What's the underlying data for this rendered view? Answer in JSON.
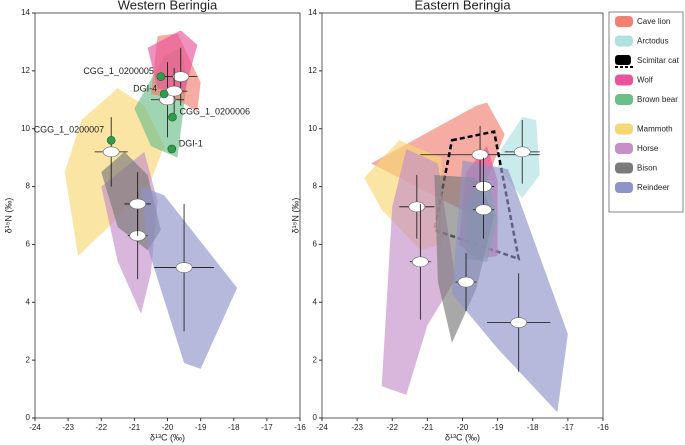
{
  "chart_data": [
    {
      "type": "scatter",
      "title": "Western Beringia",
      "xlabel": "δ¹³C (‰)",
      "ylabel": "δ¹⁵N (‰)",
      "xlim": [
        -24,
        -16
      ],
      "ylim": [
        0,
        14
      ],
      "xticks": [
        -24,
        -23,
        -22,
        -21,
        -20,
        -19,
        -18,
        -17,
        -16
      ],
      "yticks": [
        0,
        2,
        4,
        6,
        8,
        10,
        12,
        14
      ],
      "series": [
        {
          "name": "Mammoth",
          "color": "#f7d774",
          "x": -21.7,
          "y": 9.2,
          "xerr": 0.5,
          "yerr": 1.2,
          "hull": [
            [
              -23.1,
              8.5
            ],
            [
              -22.7,
              5.6
            ],
            [
              -21.6,
              6.8
            ],
            [
              -20.5,
              8.2
            ],
            [
              -20.1,
              9.4
            ],
            [
              -20.7,
              10.8
            ],
            [
              -21.5,
              11.4
            ],
            [
              -22.6,
              10.3
            ]
          ]
        },
        {
          "name": "Horse",
          "color": "#c58fc8",
          "x": -20.9,
          "y": 6.3,
          "xerr": 0.3,
          "yerr": 1.5,
          "hull": [
            [
              -22.0,
              8.0
            ],
            [
              -20.7,
              9.2
            ],
            [
              -20.3,
              7.5
            ],
            [
              -20.5,
              5.0
            ],
            [
              -20.8,
              3.6
            ],
            [
              -21.5,
              5.4
            ]
          ]
        },
        {
          "name": "Bison",
          "color": "#7a7a7a",
          "x": -20.9,
          "y": 7.4,
          "xerr": 0.4,
          "yerr": 1.1,
          "hull": [
            [
              -22.0,
              8.5
            ],
            [
              -21.3,
              9.2
            ],
            [
              -20.6,
              8.4
            ],
            [
              -20.2,
              6.5
            ],
            [
              -20.6,
              5.8
            ],
            [
              -21.5,
              6.6
            ]
          ]
        },
        {
          "name": "Reindeer",
          "color": "#8f94c8",
          "x": -19.5,
          "y": 5.2,
          "xerr": 0.9,
          "yerr": 2.2,
          "hull": [
            [
              -20.8,
              8.0
            ],
            [
              -20.1,
              7.7
            ],
            [
              -17.9,
              4.5
            ],
            [
              -19.0,
              1.7
            ],
            [
              -19.5,
              1.9
            ],
            [
              -20.6,
              5.9
            ]
          ]
        },
        {
          "name": "Brown bear",
          "color": "#6dbf8a",
          "x": -20.0,
          "y": 11.0,
          "xerr": 0.5,
          "yerr": 1.3,
          "hull": [
            [
              -21.0,
              10.7
            ],
            [
              -20.1,
              12.5
            ],
            [
              -19.6,
              12.8
            ],
            [
              -19.4,
              11.7
            ],
            [
              -19.7,
              9.0
            ],
            [
              -20.5,
              9.4
            ]
          ]
        },
        {
          "name": "Cave lion",
          "color": "#f08070",
          "x": -19.6,
          "y": 11.8,
          "xerr": 0.5,
          "yerr": 1.0,
          "hull": [
            [
              -20.3,
              13.2
            ],
            [
              -19.7,
              13.3
            ],
            [
              -19.0,
              11.6
            ],
            [
              -19.1,
              10.6
            ],
            [
              -19.7,
              11.0
            ],
            [
              -20.5,
              11.2
            ]
          ]
        },
        {
          "name": "Wolf",
          "color": "#e8559a",
          "x": -19.8,
          "y": 11.3,
          "xerr": 0.4,
          "yerr": 0.8,
          "hull": [
            [
              -20.6,
              12.8
            ],
            [
              -19.6,
              13.4
            ],
            [
              -19.1,
              12.9
            ],
            [
              -19.5,
              11.2
            ],
            [
              -20.3,
              11.4
            ]
          ]
        }
      ],
      "annotations": [
        {
          "label": "CGG_1_0200005",
          "x": -20.2,
          "y": 11.8
        },
        {
          "label": "DGI-4",
          "x": -20.1,
          "y": 11.2
        },
        {
          "label": "CGG_1_0200006",
          "x": -19.85,
          "y": 10.4
        },
        {
          "label": "DGI-1",
          "x": -19.87,
          "y": 9.3
        },
        {
          "label": "CGG_1_0200007",
          "x": -21.7,
          "y": 9.6
        }
      ],
      "annotation_color": "#2e9e4a"
    },
    {
      "type": "scatter",
      "title": "Eastern Beringia",
      "xlabel": "δ¹³C (‰)",
      "ylabel": "δ¹⁵N (‰)",
      "xlim": [
        -24,
        -16
      ],
      "ylim": [
        0,
        14
      ],
      "xticks": [
        -24,
        -23,
        -22,
        -21,
        -20,
        -19,
        -18,
        -17,
        -16
      ],
      "yticks": [
        0,
        2,
        4,
        6,
        8,
        10,
        12,
        14
      ],
      "series": [
        {
          "name": "Cave lion",
          "color": "#f08070",
          "x": -19.5,
          "y": 9.1,
          "xerr": 1.7,
          "yerr": 1.0,
          "hull": [
            [
              -22.6,
              8.8
            ],
            [
              -19.6,
              10.8
            ],
            [
              -19.3,
              10.9
            ],
            [
              -18.8,
              9.8
            ],
            [
              -19.7,
              7.0
            ],
            [
              -21.0,
              7.8
            ]
          ]
        },
        {
          "name": "Arctodus",
          "color": "#aee0e0",
          "x": -18.3,
          "y": 9.2,
          "xerr": 0.5,
          "yerr": 1.1,
          "hull": [
            [
              -18.9,
              9.3
            ],
            [
              -18.3,
              10.4
            ],
            [
              -17.9,
              10.3
            ],
            [
              -17.8,
              8.4
            ],
            [
              -18.3,
              7.6
            ],
            [
              -19.0,
              8.7
            ]
          ]
        },
        {
          "name": "Scimitar cat",
          "color": "#000000",
          "dashed": true,
          "hull": [
            [
              -20.3,
              9.6
            ],
            [
              -19.1,
              9.9
            ],
            [
              -18.4,
              5.5
            ],
            [
              -20.8,
              6.5
            ]
          ]
        },
        {
          "name": "Wolf",
          "color": "#e8559a",
          "x": -19.4,
          "y": 8.0,
          "xerr": 0.3,
          "yerr": 1.0,
          "hull": [
            [
              -19.9,
              8.5
            ],
            [
              -19.3,
              9.4
            ],
            [
              -19.0,
              8.2
            ],
            [
              -19.0,
              5.6
            ],
            [
              -19.6,
              5.5
            ],
            [
              -20.1,
              6.0
            ]
          ]
        },
        {
          "name": "Brown bear",
          "color": "#6dbf8a",
          "x": -19.4,
          "y": 7.2,
          "xerr": 0.3,
          "yerr": 1.0,
          "hull": [
            [
              -19.9,
              7.4
            ],
            [
              -19.3,
              8.5
            ],
            [
              -19.0,
              6.8
            ],
            [
              -19.3,
              5.4
            ],
            [
              -19.9,
              5.5
            ]
          ]
        },
        {
          "name": "Mammoth",
          "color": "#f7d774",
          "x": -21.3,
          "y": 7.3,
          "xerr": 0.5,
          "yerr": 1.1,
          "hull": [
            [
              -22.8,
              8.3
            ],
            [
              -21.8,
              9.6
            ],
            [
              -20.6,
              9.0
            ],
            [
              -20.6,
              6.0
            ],
            [
              -21.2,
              5.8
            ],
            [
              -22.3,
              7.2
            ]
          ]
        },
        {
          "name": "Horse",
          "color": "#c58fc8",
          "x": -21.2,
          "y": 5.4,
          "xerr": 0.3,
          "yerr": 2.0,
          "hull": [
            [
              -22.0,
              7.3
            ],
            [
              -21.6,
              9.3
            ],
            [
              -20.7,
              8.8
            ],
            [
              -20.2,
              4.8
            ],
            [
              -21.0,
              3.2
            ],
            [
              -21.6,
              0.8
            ],
            [
              -22.3,
              1.1
            ]
          ]
        },
        {
          "name": "Bison",
          "color": "#7a7a7a",
          "x": -19.9,
          "y": 4.7,
          "xerr": 0.3,
          "yerr": 1.0,
          "hull": [
            [
              -20.8,
              8.4
            ],
            [
              -19.6,
              8.3
            ],
            [
              -19.1,
              7.0
            ],
            [
              -19.6,
              4.5
            ],
            [
              -20.3,
              2.6
            ],
            [
              -20.7,
              4.7
            ]
          ]
        },
        {
          "name": "Reindeer",
          "color": "#8f94c8",
          "x": -18.4,
          "y": 3.3,
          "xerr": 0.9,
          "yerr": 1.7,
          "hull": [
            [
              -20.0,
              8.9
            ],
            [
              -18.7,
              8.6
            ],
            [
              -17.0,
              2.9
            ],
            [
              -17.3,
              0.2
            ],
            [
              -19.0,
              2.4
            ],
            [
              -20.3,
              4.3
            ]
          ]
        }
      ]
    }
  ]
}
